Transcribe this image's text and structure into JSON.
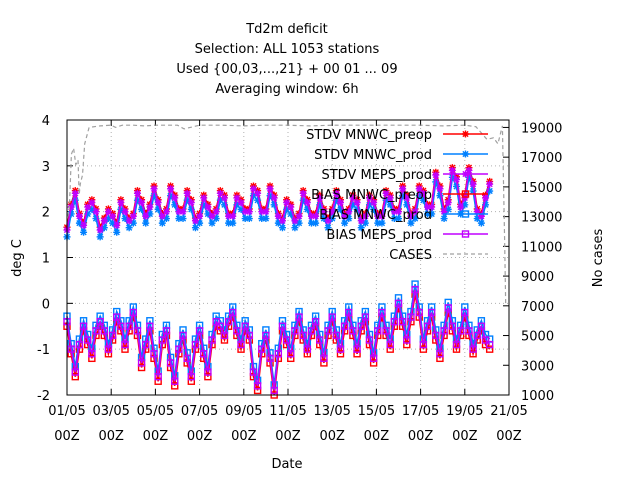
{
  "chart_data": {
    "type": "line",
    "title_lines": [
      "Td2m deficit",
      "Selection: ALL    1053 stations",
      "Used {00,03,...,21} + 00 01 ... 09",
      "Averaging window:  6h"
    ],
    "xlabel": "Date",
    "ylabel": "deg C",
    "y2label": "No cases",
    "x_ticks": [
      {
        "line1": "01/05",
        "line2": "00Z"
      },
      {
        "line1": "03/05",
        "line2": "00Z"
      },
      {
        "line1": "05/05",
        "line2": "00Z"
      },
      {
        "line1": "07/05",
        "line2": "00Z"
      },
      {
        "line1": "09/05",
        "line2": "00Z"
      },
      {
        "line1": "11/05",
        "line2": "00Z"
      },
      {
        "line1": "13/05",
        "line2": "00Z"
      },
      {
        "line1": "15/05",
        "line2": "00Z"
      },
      {
        "line1": "17/05",
        "line2": "00Z"
      },
      {
        "line1": "19/05",
        "line2": "00Z"
      },
      {
        "line1": "21/05",
        "line2": "00Z"
      }
    ],
    "y_ticks": [
      -2,
      -1,
      0,
      1,
      2,
      3,
      4
    ],
    "y2_ticks": [
      1000,
      3000,
      5000,
      7000,
      9000,
      11000,
      13000,
      15000,
      17000,
      19000
    ],
    "ylim": [
      -2,
      4
    ],
    "y2lim": [
      1000,
      19500
    ],
    "xlim_days": [
      0,
      20
    ],
    "grid": true,
    "legend_position": "top-right",
    "series": [
      {
        "name": "STDV MNWC_preop",
        "kind": "stdv",
        "color": "#ff0000",
        "marker": "star",
        "dash": "",
        "offset": 0.06,
        "values": [
          1.6,
          2.1,
          2.4,
          1.9,
          1.7,
          2.1,
          2.2,
          2.0,
          1.6,
          1.8,
          2.0,
          1.9,
          1.7,
          2.2,
          2.0,
          1.8,
          1.9,
          2.4,
          2.2,
          1.9,
          2.1,
          2.5,
          2.2,
          1.9,
          2.0,
          2.5,
          2.3,
          2.0,
          2.0,
          2.4,
          2.2,
          1.8,
          1.9,
          2.3,
          2.1,
          1.9,
          2.0,
          2.4,
          2.3,
          1.9,
          1.9,
          2.3,
          2.2,
          2.0,
          2.0,
          2.5,
          2.4,
          2.0,
          2.0,
          2.5,
          2.3,
          1.9,
          1.8,
          2.2,
          2.1,
          1.8,
          1.9,
          2.4,
          2.2,
          1.9,
          1.9,
          2.3,
          2.0,
          1.8,
          2.0,
          2.4,
          2.2,
          1.9,
          2.0,
          2.3,
          2.2,
          1.8,
          1.9,
          2.3,
          2.2,
          1.9,
          1.9,
          2.4,
          2.3,
          2.0,
          2.0,
          2.5,
          2.3,
          1.9,
          2.0,
          2.5,
          2.4,
          2.1,
          2.1,
          2.8,
          2.5,
          2.0,
          2.2,
          2.9,
          2.7,
          2.1,
          2.3,
          2.9,
          2.6,
          2.0,
          1.9,
          2.3,
          2.6
        ]
      },
      {
        "name": "STDV MNWC_prod",
        "kind": "stdv",
        "color": "#0080ff",
        "marker": "star",
        "dash": "",
        "offset": -0.05,
        "values": [
          1.5,
          2.0,
          2.3,
          1.8,
          1.6,
          2.0,
          2.1,
          1.9,
          1.5,
          1.7,
          1.9,
          1.8,
          1.6,
          2.1,
          1.9,
          1.7,
          1.8,
          2.3,
          2.1,
          1.8,
          2.0,
          2.4,
          2.1,
          1.8,
          1.9,
          2.4,
          2.2,
          1.9,
          1.9,
          2.3,
          2.1,
          1.7,
          1.8,
          2.2,
          2.0,
          1.8,
          1.9,
          2.3,
          2.2,
          1.8,
          1.8,
          2.2,
          2.1,
          1.9,
          1.9,
          2.4,
          2.3,
          1.9,
          1.9,
          2.4,
          2.2,
          1.8,
          1.7,
          2.1,
          2.0,
          1.7,
          1.8,
          2.3,
          2.1,
          1.8,
          1.8,
          2.2,
          1.9,
          1.7,
          1.9,
          2.3,
          2.1,
          1.8,
          1.9,
          2.2,
          2.1,
          1.7,
          1.8,
          2.2,
          2.1,
          1.8,
          1.8,
          2.3,
          2.2,
          1.9,
          1.9,
          2.4,
          2.2,
          1.8,
          1.9,
          2.4,
          2.3,
          2.0,
          2.0,
          2.7,
          2.4,
          1.9,
          2.1,
          2.8,
          2.6,
          2.0,
          2.2,
          2.8,
          2.5,
          1.9,
          1.8,
          2.2,
          2.5
        ]
      },
      {
        "name": "STDV MEPS_prod",
        "kind": "stdv",
        "color": "#c000ff",
        "marker": "star",
        "dash": "",
        "offset": 0.0,
        "values": [
          1.6,
          2.1,
          2.4,
          1.9,
          1.7,
          2.1,
          2.2,
          2.0,
          1.6,
          1.8,
          2.0,
          1.9,
          1.7,
          2.2,
          2.0,
          1.8,
          1.9,
          2.4,
          2.2,
          1.9,
          2.1,
          2.5,
          2.2,
          1.9,
          2.0,
          2.5,
          2.3,
          2.0,
          2.0,
          2.4,
          2.2,
          1.8,
          1.9,
          2.3,
          2.1,
          1.9,
          2.0,
          2.4,
          2.3,
          1.9,
          1.9,
          2.3,
          2.2,
          2.0,
          2.0,
          2.5,
          2.4,
          2.0,
          2.0,
          2.5,
          2.3,
          1.9,
          1.8,
          2.2,
          2.1,
          1.8,
          1.9,
          2.4,
          2.2,
          1.9,
          1.9,
          2.3,
          2.0,
          1.8,
          2.0,
          2.4,
          2.2,
          1.9,
          2.0,
          2.3,
          2.2,
          1.8,
          1.9,
          2.3,
          2.2,
          1.9,
          1.9,
          2.4,
          2.3,
          2.0,
          2.0,
          2.5,
          2.3,
          1.9,
          2.0,
          2.5,
          2.4,
          2.1,
          2.1,
          2.8,
          2.5,
          2.0,
          2.2,
          2.9,
          2.7,
          2.1,
          2.3,
          2.9,
          2.6,
          2.0,
          1.9,
          2.3,
          2.6
        ]
      },
      {
        "name": "BIAS MNWC_preop",
        "kind": "bias",
        "color": "#ff0000",
        "marker": "square",
        "dash": "",
        "offset": -0.1,
        "values": [
          -0.4,
          -1.0,
          -1.5,
          -0.9,
          -0.5,
          -0.8,
          -1.1,
          -0.6,
          -0.4,
          -0.6,
          -1.0,
          -0.7,
          -0.3,
          -0.5,
          -0.9,
          -0.5,
          -0.2,
          -0.6,
          -1.3,
          -0.9,
          -0.5,
          -1.1,
          -1.6,
          -0.8,
          -0.6,
          -1.3,
          -1.7,
          -1.0,
          -0.7,
          -1.2,
          -1.6,
          -0.9,
          -0.6,
          -1.1,
          -1.5,
          -0.8,
          -0.4,
          -0.5,
          -0.7,
          -0.4,
          -0.2,
          -0.6,
          -0.9,
          -0.5,
          -0.7,
          -1.5,
          -1.8,
          -1.0,
          -0.7,
          -1.2,
          -1.9,
          -1.1,
          -0.5,
          -0.8,
          -1.1,
          -0.6,
          -0.3,
          -0.7,
          -1.0,
          -0.6,
          -0.4,
          -0.8,
          -1.2,
          -0.6,
          -0.3,
          -0.7,
          -1.0,
          -0.5,
          -0.2,
          -0.6,
          -1.0,
          -0.5,
          -0.3,
          -0.8,
          -1.2,
          -0.6,
          -0.2,
          -0.6,
          -0.9,
          -0.4,
          0.0,
          -0.4,
          -0.8,
          -0.3,
          0.3,
          -0.2,
          -0.9,
          -0.5,
          -0.2,
          -0.7,
          -1.1,
          -0.6,
          -0.1,
          -0.5,
          -0.9,
          -0.6,
          -0.2,
          -0.6,
          -1.0,
          -0.7,
          -0.5,
          -0.8,
          -0.9
        ]
      },
      {
        "name": "BIAS MNWC_prod",
        "kind": "bias",
        "color": "#0080ff",
        "marker": "square",
        "dash": "",
        "offset": 0.12,
        "values": [
          -0.4,
          -1.0,
          -1.5,
          -0.9,
          -0.5,
          -0.8,
          -1.1,
          -0.6,
          -0.4,
          -0.6,
          -1.0,
          -0.7,
          -0.3,
          -0.5,
          -0.9,
          -0.5,
          -0.2,
          -0.6,
          -1.3,
          -0.9,
          -0.5,
          -1.1,
          -1.6,
          -0.8,
          -0.6,
          -1.3,
          -1.7,
          -1.0,
          -0.7,
          -1.2,
          -1.6,
          -0.9,
          -0.6,
          -1.1,
          -1.5,
          -0.8,
          -0.4,
          -0.5,
          -0.7,
          -0.4,
          -0.2,
          -0.6,
          -0.9,
          -0.5,
          -0.7,
          -1.5,
          -1.8,
          -1.0,
          -0.7,
          -1.2,
          -1.9,
          -1.1,
          -0.5,
          -0.8,
          -1.1,
          -0.6,
          -0.3,
          -0.7,
          -1.0,
          -0.6,
          -0.4,
          -0.8,
          -1.2,
          -0.6,
          -0.3,
          -0.7,
          -1.0,
          -0.5,
          -0.2,
          -0.6,
          -1.0,
          -0.5,
          -0.3,
          -0.8,
          -1.2,
          -0.6,
          -0.2,
          -0.6,
          -0.9,
          -0.4,
          0.0,
          -0.4,
          -0.8,
          -0.3,
          0.3,
          -0.2,
          -0.9,
          -0.5,
          -0.2,
          -0.7,
          -1.1,
          -0.6,
          -0.1,
          -0.5,
          -0.9,
          -0.6,
          -0.2,
          -0.6,
          -1.0,
          -0.7,
          -0.5,
          -0.8,
          -0.9
        ]
      },
      {
        "name": "BIAS MEPS_prod",
        "kind": "bias",
        "color": "#c000ff",
        "marker": "square",
        "dash": "",
        "offset": 0.0,
        "values": [
          -0.4,
          -1.0,
          -1.5,
          -0.9,
          -0.5,
          -0.8,
          -1.1,
          -0.6,
          -0.4,
          -0.6,
          -1.0,
          -0.7,
          -0.3,
          -0.5,
          -0.9,
          -0.5,
          -0.2,
          -0.6,
          -1.3,
          -0.9,
          -0.5,
          -1.1,
          -1.6,
          -0.8,
          -0.6,
          -1.3,
          -1.7,
          -1.0,
          -0.7,
          -1.2,
          -1.6,
          -0.9,
          -0.6,
          -1.1,
          -1.5,
          -0.8,
          -0.4,
          -0.5,
          -0.7,
          -0.4,
          -0.2,
          -0.6,
          -0.9,
          -0.5,
          -0.7,
          -1.5,
          -1.8,
          -1.0,
          -0.7,
          -1.2,
          -1.9,
          -1.1,
          -0.5,
          -0.8,
          -1.1,
          -0.6,
          -0.3,
          -0.7,
          -1.0,
          -0.6,
          -0.4,
          -0.8,
          -1.2,
          -0.6,
          -0.3,
          -0.7,
          -1.0,
          -0.5,
          -0.2,
          -0.6,
          -1.0,
          -0.5,
          -0.3,
          -0.8,
          -1.2,
          -0.6,
          -0.2,
          -0.6,
          -0.9,
          -0.4,
          0.0,
          -0.4,
          -0.8,
          -0.3,
          0.3,
          -0.2,
          -0.9,
          -0.5,
          -0.2,
          -0.7,
          -1.1,
          -0.6,
          -0.1,
          -0.5,
          -0.9,
          -0.6,
          -0.2,
          -0.6,
          -1.0,
          -0.7,
          -0.5,
          -0.8,
          -0.9
        ]
      },
      {
        "name": "CASES",
        "kind": "cases",
        "color": "#a0a0a0",
        "marker": "none",
        "dash": "4,3",
        "x_days": [
          0.0,
          0.1,
          0.2,
          0.3,
          0.4,
          0.5,
          0.55,
          0.6,
          0.7,
          0.8,
          1.0,
          1.5,
          2.0,
          2.2,
          2.5,
          3.0,
          3.5,
          4.0,
          5.0,
          5.3,
          6.0,
          7.0,
          8.0,
          9.0,
          10.0,
          11.0,
          12.0,
          13.0,
          14.0,
          15.0,
          16.0,
          17.0,
          18.0,
          18.5,
          19.0,
          19.3,
          19.5,
          19.7,
          19.8,
          19.85
        ],
        "values": [
          13000,
          13300,
          17200,
          17600,
          16500,
          16800,
          14500,
          15200,
          15800,
          17900,
          19000,
          19100,
          19150,
          19000,
          19150,
          19150,
          19100,
          19150,
          19150,
          18900,
          19150,
          19150,
          19100,
          19150,
          19150,
          19100,
          19150,
          19150,
          19150,
          19150,
          19150,
          19100,
          19150,
          19050,
          18200,
          18300,
          17900,
          19100,
          11500,
          7000
        ]
      }
    ]
  }
}
